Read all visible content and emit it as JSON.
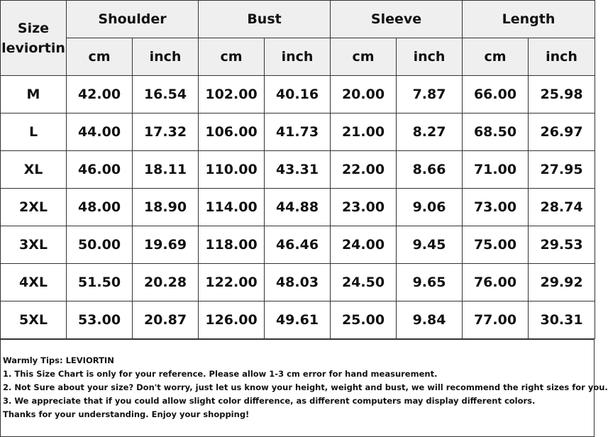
{
  "table": {
    "size_header": [
      "Size",
      "leviortin"
    ],
    "groups": [
      "Shoulder",
      "Bust",
      "Sleeve",
      "Length"
    ],
    "units": [
      "cm",
      "inch",
      "cm",
      "inch",
      "cm",
      "inch",
      "cm",
      "inch"
    ],
    "rows": [
      [
        "M",
        "42.00",
        "16.54",
        "102.00",
        "40.16",
        "20.00",
        "7.87",
        "66.00",
        "25.98"
      ],
      [
        "L",
        "44.00",
        "17.32",
        "106.00",
        "41.73",
        "21.00",
        "8.27",
        "68.50",
        "26.97"
      ],
      [
        "XL",
        "46.00",
        "18.11",
        "110.00",
        "43.31",
        "22.00",
        "8.66",
        "71.00",
        "27.95"
      ],
      [
        "2XL",
        "48.00",
        "18.90",
        "114.00",
        "44.88",
        "23.00",
        "9.06",
        "73.00",
        "28.74"
      ],
      [
        "3XL",
        "50.00",
        "19.69",
        "118.00",
        "46.46",
        "24.00",
        "9.45",
        "75.00",
        "29.53"
      ],
      [
        "4XL",
        "51.50",
        "20.28",
        "122.00",
        "48.03",
        "24.50",
        "9.65",
        "76.00",
        "29.92"
      ],
      [
        "5XL",
        "53.00",
        "20.87",
        "126.00",
        "49.61",
        "25.00",
        "9.84",
        "77.00",
        "30.31"
      ]
    ]
  },
  "tips": [
    "Warmly Tips: LEVIORTIN",
    "1. This Size Chart is only for your reference. Please allow 1-3 cm error for hand measurement.",
    "2. Not Sure about your size? Don't worry, just let us know your height, weight and bust, we will recommend the right sizes for you.",
    "3. We appreciate that if you could allow slight color difference, as different computers may display different colors.",
    "Thanks for your understanding. Enjoy your shopping!"
  ]
}
